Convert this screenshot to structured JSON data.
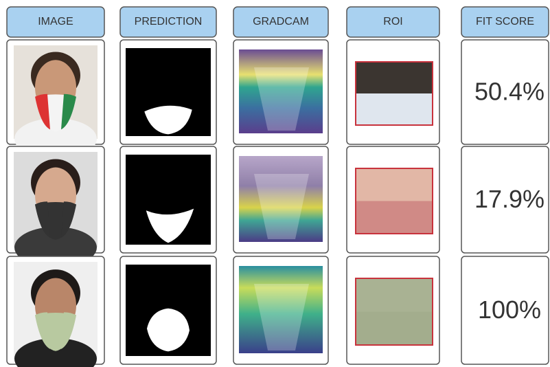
{
  "table": {
    "header": [
      "IMAGE",
      "PREDICTION",
      "GRADCAM",
      "ROI",
      "FIT SCORE"
    ],
    "rows": [
      [
        "50.4%"
      ],
      [
        "17.9%"
      ],
      [
        "100%"
      ]
    ]
  }
}
